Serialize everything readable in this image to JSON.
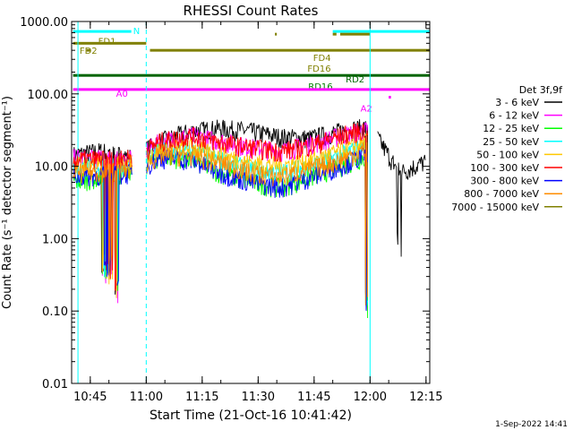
{
  "chart_data": {
    "type": "line",
    "title": "RHESSI Count Rates",
    "xlabel": "Start Time (21-Oct-16 10:41:42)",
    "ylabel": "Count Rate (s⁻¹ detector segment⁻¹)",
    "y_scale": "log",
    "ylim": [
      0.01,
      1000
    ],
    "xlim_minutes_after_1040": [
      0,
      96
    ],
    "x_ticks": [
      "10:45",
      "11:00",
      "11:15",
      "11:30",
      "11:45",
      "12:00",
      "12:15"
    ],
    "y_ticks": [
      "1000.00",
      "100.00",
      "10.00",
      "1.00",
      "0.10",
      "0.01"
    ],
    "legend_title": "Det 3f,9f",
    "series": [
      {
        "name": "3 - 6 keV",
        "color": "#000000",
        "x_min": [
          0,
          8,
          16,
          24,
          32,
          40,
          48,
          56,
          64,
          72,
          80,
          88,
          96
        ],
        "values": [
          14,
          16,
          13,
          22,
          30,
          33,
          30,
          25,
          24,
          30,
          35,
          8,
          12
        ]
      },
      {
        "name": "6 - 12 keV",
        "color": "#ff00ff",
        "x_min": [
          0,
          16,
          24,
          32,
          40,
          48,
          56,
          64,
          72,
          80
        ],
        "values": [
          13,
          12,
          22,
          26,
          22,
          18,
          16,
          20,
          26,
          32
        ]
      },
      {
        "name": "12 - 25 keV",
        "color": "#00ff00",
        "x_min": [
          0,
          16,
          24,
          32,
          40,
          48,
          56,
          64,
          72,
          80
        ],
        "values": [
          6,
          8,
          14,
          12,
          8,
          6,
          5,
          7,
          10,
          14
        ]
      },
      {
        "name": "25 - 50 keV",
        "color": "#00ffff",
        "x_min": [
          0,
          16,
          24,
          32,
          40,
          48,
          56,
          64,
          72,
          80
        ],
        "values": [
          9,
          10,
          16,
          16,
          12,
          9,
          8,
          10,
          14,
          20
        ]
      },
      {
        "name": "50 - 100 keV",
        "color": "#ffc800",
        "x_min": [
          0,
          16,
          24,
          32,
          40,
          48,
          56,
          64,
          72,
          80
        ],
        "values": [
          10,
          11,
          17,
          18,
          14,
          11,
          10,
          12,
          16,
          22
        ]
      },
      {
        "name": "100 - 300 keV",
        "color": "#ff0000",
        "x_min": [
          0,
          16,
          24,
          32,
          40,
          48,
          56,
          64,
          72,
          80
        ],
        "values": [
          12,
          13,
          22,
          26,
          21,
          18,
          16,
          19,
          26,
          33
        ]
      },
      {
        "name": "300 - 800 keV",
        "color": "#0000ff",
        "x_min": [
          0,
          16,
          24,
          32,
          40,
          48,
          56,
          64,
          72,
          80
        ],
        "values": [
          7,
          8,
          13,
          12,
          8,
          6,
          5,
          7,
          10,
          15
        ]
      },
      {
        "name": "800 - 7000 keV",
        "color": "#ff8c00",
        "x_min": [
          0,
          16,
          24,
          32,
          40,
          48,
          56,
          64,
          72,
          80
        ],
        "values": [
          8,
          9,
          14,
          14,
          11,
          8,
          7,
          9,
          12,
          18
        ]
      },
      {
        "name": "7000 - 15000 keV",
        "color": "#808000",
        "x_min": [],
        "values": []
      }
    ],
    "flag_bars": [
      {
        "label": "N",
        "color": "#00ffff",
        "value": 650
      },
      {
        "label": "FD1",
        "color": "#808000",
        "value": 500
      },
      {
        "label": "FD2",
        "color": "#808000",
        "value": 400
      },
      {
        "label": "FD4",
        "color": "#808000",
        "value": 400
      },
      {
        "label": "FD16",
        "color": "#808000",
        "value": 400
      },
      {
        "label": "RD2",
        "color": "#006400",
        "value": 180
      },
      {
        "label": "RD16",
        "color": "#008000",
        "value": 180
      },
      {
        "label": "A0",
        "color": "#ff00ff",
        "value": 115
      },
      {
        "label": "A2",
        "color": "#ff00ff",
        "value": 90
      }
    ],
    "vertical_lines": [
      {
        "style": "solid",
        "color": "#00ffff",
        "time": "10:41:42"
      },
      {
        "style": "dashed",
        "color": "#00ffff",
        "time": "11:00"
      },
      {
        "style": "solid",
        "color": "#00ffff",
        "time": "12:00"
      },
      {
        "style": "dashed",
        "color": "#00ffff",
        "time": "12:16"
      }
    ],
    "grid": false,
    "legend_placement": "right"
  },
  "footer": {
    "timestamp": "1-Sep-2022 14:41"
  }
}
